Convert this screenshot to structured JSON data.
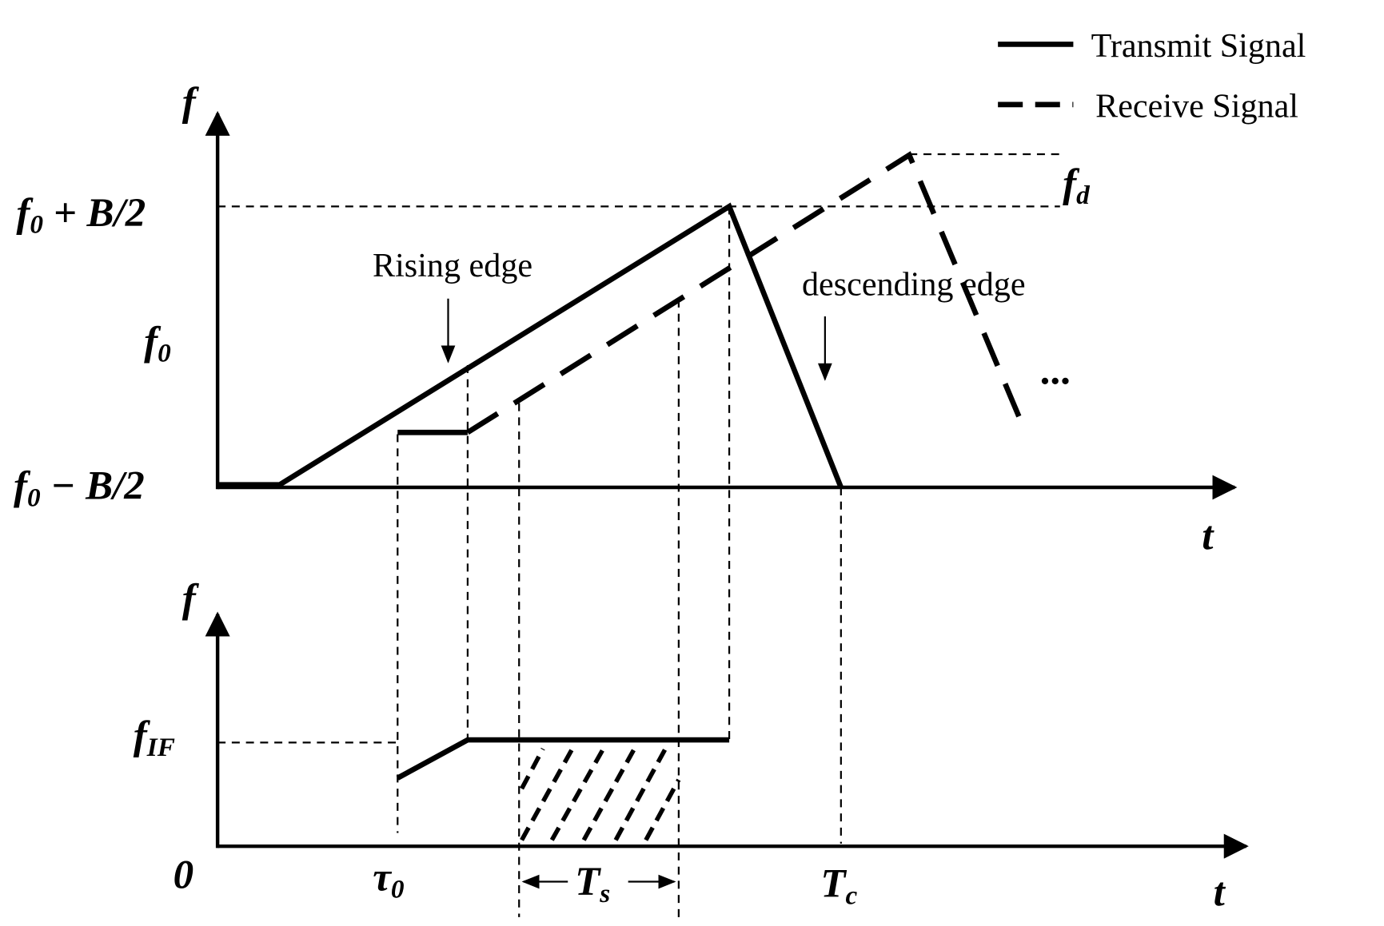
{
  "legend": {
    "items": [
      {
        "label": "Transmit Signal"
      },
      {
        "label": "Receive Signal"
      }
    ]
  },
  "top_plot": {
    "y_axis_label": "f",
    "x_axis_label": "t",
    "y_labels": [
      {
        "main": "f",
        "sub": "0",
        "tail": " + B/2"
      },
      {
        "main": "f",
        "sub": "0"
      },
      {
        "main": "f",
        "sub": "0",
        "tail": " − B/2"
      }
    ],
    "annotations": {
      "rising": "Rising edge",
      "descending": "descending edge",
      "doppler": {
        "main": "f",
        "sub": "d"
      },
      "ellipsis": "···"
    }
  },
  "bottom_plot": {
    "y_axis_label": "f",
    "x_axis_label": "t",
    "y_labels": [
      {
        "main": "f",
        "sub": "IF"
      },
      {
        "main": "0"
      }
    ],
    "x_labels": [
      {
        "main": "τ",
        "sub": "0"
      },
      {
        "main": "T",
        "sub": "s"
      },
      {
        "main": "T",
        "sub": "c"
      }
    ]
  }
}
